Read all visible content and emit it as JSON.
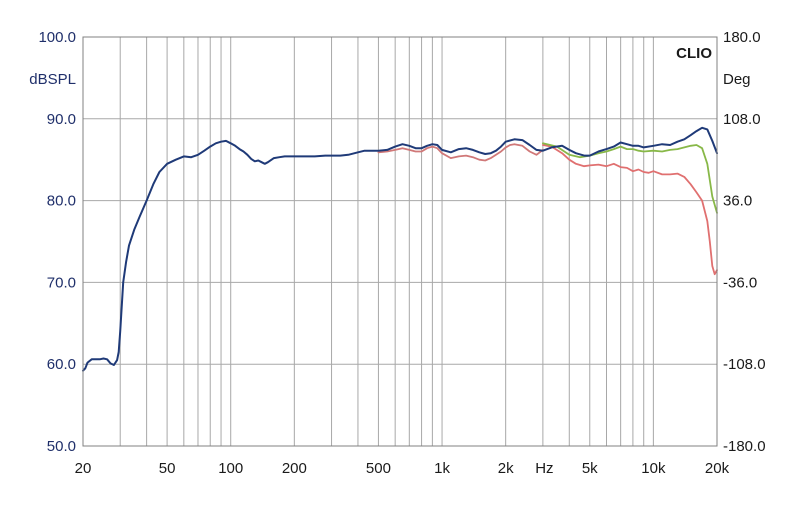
{
  "chart_data": {
    "type": "line",
    "brand": "CLIO",
    "ylabel_left": "dBSPL",
    "ylabel_right": "Deg",
    "xunit": "Hz",
    "xscale": "log",
    "xlim": [
      20,
      20000
    ],
    "ylim": [
      50,
      100
    ],
    "ylim_right": [
      -180,
      180
    ],
    "grid": true,
    "x_ticks": [
      {
        "value": 20,
        "label": "20"
      },
      {
        "value": 50,
        "label": "50"
      },
      {
        "value": 100,
        "label": "100"
      },
      {
        "value": 200,
        "label": "200"
      },
      {
        "value": 500,
        "label": "500"
      },
      {
        "value": 1000,
        "label": "1k"
      },
      {
        "value": 2000,
        "label": "2k"
      },
      {
        "value": 5000,
        "label": "5k"
      },
      {
        "value": 10000,
        "label": "10k"
      },
      {
        "value": 20000,
        "label": "20k"
      }
    ],
    "y_ticks_left": [
      "50.0",
      "60.0",
      "70.0",
      "80.0",
      "90.0",
      "100.0"
    ],
    "y_ticks_right": [
      "-180.0",
      "-108.0",
      "-36.0",
      "36.0",
      "108.0",
      "180.0"
    ],
    "series": [
      {
        "color": "#e07070",
        "points": [
          [
            3000,
            86.8
          ],
          [
            3300,
            86.6
          ],
          [
            3700,
            85.8
          ],
          [
            4000,
            85.0
          ],
          [
            4300,
            84.5
          ],
          [
            4700,
            84.2
          ],
          [
            5000,
            84.3
          ],
          [
            5500,
            84.4
          ],
          [
            6000,
            84.2
          ],
          [
            6500,
            84.5
          ],
          [
            7000,
            84.1
          ],
          [
            7500,
            84.0
          ],
          [
            8000,
            83.6
          ],
          [
            8500,
            83.8
          ],
          [
            9000,
            83.5
          ],
          [
            9500,
            83.4
          ],
          [
            10000,
            83.6
          ],
          [
            11000,
            83.2
          ],
          [
            12000,
            83.2
          ],
          [
            13000,
            83.3
          ],
          [
            14000,
            82.9
          ],
          [
            15000,
            82.0
          ],
          [
            16000,
            81.0
          ],
          [
            17000,
            80.0
          ],
          [
            18000,
            77.5
          ],
          [
            18500,
            75.0
          ],
          [
            19000,
            72.0
          ],
          [
            19500,
            71.0
          ],
          [
            20000,
            71.5
          ]
        ]
      },
      {
        "color": "#88b848",
        "points": [
          [
            3000,
            87.0
          ],
          [
            3500,
            86.6
          ],
          [
            4000,
            85.6
          ],
          [
            4500,
            85.3
          ],
          [
            5000,
            85.5
          ],
          [
            5500,
            85.8
          ],
          [
            6000,
            86.0
          ],
          [
            6500,
            86.3
          ],
          [
            7000,
            86.6
          ],
          [
            7500,
            86.3
          ],
          [
            8000,
            86.3
          ],
          [
            8500,
            86.1
          ],
          [
            9000,
            86.0
          ],
          [
            10000,
            86.1
          ],
          [
            11000,
            86.0
          ],
          [
            12000,
            86.2
          ],
          [
            13000,
            86.3
          ],
          [
            14000,
            86.5
          ],
          [
            15000,
            86.7
          ],
          [
            16000,
            86.8
          ],
          [
            17000,
            86.4
          ],
          [
            18000,
            84.5
          ],
          [
            19000,
            80.5
          ],
          [
            20000,
            78.5
          ]
        ]
      },
      {
        "color": "#d07878",
        "points": [
          [
            500,
            85.9
          ],
          [
            550,
            86.0
          ],
          [
            600,
            86.2
          ],
          [
            650,
            86.4
          ],
          [
            700,
            86.2
          ],
          [
            750,
            86.0
          ],
          [
            800,
            86.0
          ],
          [
            850,
            86.4
          ],
          [
            900,
            86.6
          ],
          [
            950,
            86.4
          ],
          [
            1000,
            85.8
          ],
          [
            1100,
            85.2
          ],
          [
            1200,
            85.4
          ],
          [
            1300,
            85.5
          ],
          [
            1400,
            85.3
          ],
          [
            1500,
            85.0
          ],
          [
            1600,
            84.9
          ],
          [
            1700,
            85.2
          ],
          [
            1800,
            85.6
          ],
          [
            1900,
            86.0
          ],
          [
            2000,
            86.5
          ],
          [
            2100,
            86.8
          ],
          [
            2200,
            86.9
          ],
          [
            2400,
            86.7
          ],
          [
            2600,
            86.0
          ],
          [
            2800,
            85.6
          ],
          [
            3000,
            86.2
          ]
        ]
      },
      {
        "color": "#1f3a78",
        "points": [
          [
            20,
            59.2
          ],
          [
            20.5,
            59.5
          ],
          [
            21,
            60.2
          ],
          [
            22,
            60.6
          ],
          [
            23,
            60.6
          ],
          [
            24,
            60.6
          ],
          [
            25,
            60.7
          ],
          [
            26,
            60.6
          ],
          [
            27,
            60.1
          ],
          [
            28,
            59.9
          ],
          [
            29,
            60.5
          ],
          [
            29.5,
            61.5
          ],
          [
            30,
            64.0
          ],
          [
            30.5,
            67.0
          ],
          [
            31,
            70.0
          ],
          [
            32,
            72.5
          ],
          [
            33,
            74.5
          ],
          [
            35,
            76.5
          ],
          [
            37,
            78.0
          ],
          [
            40,
            80.0
          ],
          [
            43,
            82.0
          ],
          [
            46,
            83.5
          ],
          [
            50,
            84.5
          ],
          [
            55,
            85.0
          ],
          [
            60,
            85.4
          ],
          [
            65,
            85.3
          ],
          [
            70,
            85.6
          ],
          [
            75,
            86.1
          ],
          [
            80,
            86.6
          ],
          [
            85,
            87.0
          ],
          [
            90,
            87.2
          ],
          [
            95,
            87.3
          ],
          [
            100,
            87.0
          ],
          [
            105,
            86.7
          ],
          [
            110,
            86.3
          ],
          [
            115,
            86.0
          ],
          [
            120,
            85.6
          ],
          [
            125,
            85.1
          ],
          [
            130,
            84.8
          ],
          [
            135,
            84.9
          ],
          [
            140,
            84.7
          ],
          [
            145,
            84.5
          ],
          [
            150,
            84.7
          ],
          [
            160,
            85.2
          ],
          [
            170,
            85.3
          ],
          [
            180,
            85.4
          ],
          [
            200,
            85.4
          ],
          [
            220,
            85.4
          ],
          [
            250,
            85.4
          ],
          [
            280,
            85.5
          ],
          [
            300,
            85.5
          ],
          [
            330,
            85.5
          ],
          [
            360,
            85.6
          ],
          [
            400,
            85.9
          ],
          [
            430,
            86.1
          ],
          [
            460,
            86.1
          ],
          [
            500,
            86.1
          ],
          [
            550,
            86.2
          ],
          [
            600,
            86.6
          ],
          [
            650,
            86.9
          ],
          [
            700,
            86.7
          ],
          [
            750,
            86.4
          ],
          [
            800,
            86.4
          ],
          [
            850,
            86.7
          ],
          [
            900,
            86.9
          ],
          [
            950,
            86.8
          ],
          [
            1000,
            86.2
          ],
          [
            1100,
            85.9
          ],
          [
            1200,
            86.3
          ],
          [
            1300,
            86.4
          ],
          [
            1400,
            86.2
          ],
          [
            1500,
            85.9
          ],
          [
            1600,
            85.7
          ],
          [
            1700,
            85.8
          ],
          [
            1800,
            86.1
          ],
          [
            1900,
            86.6
          ],
          [
            2000,
            87.2
          ],
          [
            2200,
            87.5
          ],
          [
            2400,
            87.4
          ],
          [
            2600,
            86.8
          ],
          [
            2800,
            86.2
          ],
          [
            3000,
            86.1
          ],
          [
            3300,
            86.5
          ],
          [
            3700,
            86.7
          ],
          [
            4000,
            86.2
          ],
          [
            4300,
            85.8
          ],
          [
            4700,
            85.5
          ],
          [
            5000,
            85.5
          ],
          [
            5500,
            86.0
          ],
          [
            6000,
            86.3
          ],
          [
            6500,
            86.6
          ],
          [
            7000,
            87.1
          ],
          [
            7500,
            86.9
          ],
          [
            8000,
            86.7
          ],
          [
            8500,
            86.7
          ],
          [
            9000,
            86.5
          ],
          [
            10000,
            86.7
          ],
          [
            11000,
            86.9
          ],
          [
            12000,
            86.8
          ],
          [
            13000,
            87.2
          ],
          [
            14000,
            87.5
          ],
          [
            15000,
            88.0
          ],
          [
            16000,
            88.5
          ],
          [
            17000,
            88.9
          ],
          [
            18000,
            88.7
          ],
          [
            19000,
            87.3
          ],
          [
            20000,
            85.8
          ]
        ]
      }
    ]
  }
}
